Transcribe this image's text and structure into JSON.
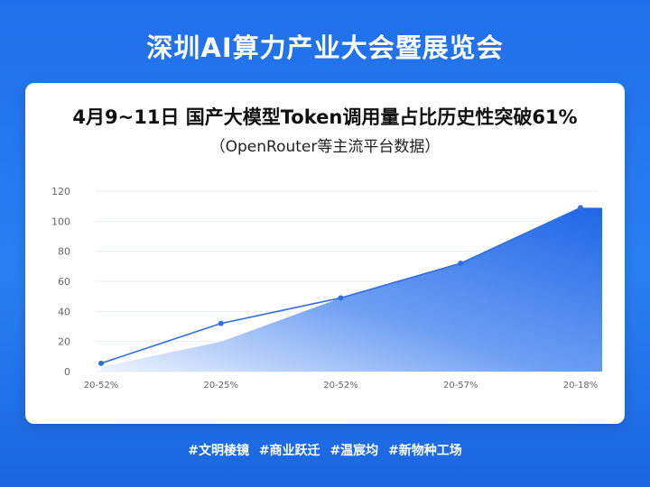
{
  "banner": {
    "title": "深圳AI算力产业大会暨展览会"
  },
  "card": {
    "title": "4月9~11日 国产大模型Token调用量占比历史性突破61%",
    "subtitle": "（OpenRouter等主流平台数据）"
  },
  "chart_data": {
    "type": "area",
    "title": "4月9~11日 国产大模型Token调用量占比历史性突破61%",
    "subtitle": "（OpenRouter等主流平台数据）",
    "categories": [
      "20-52%",
      "20-25%",
      "20-52%",
      "20-57%",
      "20-18%"
    ],
    "series": [
      {
        "values": [
          5.5,
          32,
          49,
          72,
          109
        ]
      }
    ],
    "ylim": [
      0,
      120
    ],
    "yticks": [
      0,
      20,
      40,
      60,
      80,
      100,
      120
    ],
    "grid": true,
    "colors": {
      "line": "#2f6fe4",
      "fill_top": "#1f66e6",
      "fill_bottom": "#eef4fe",
      "grid": "#e8edf5",
      "tick": "#666666"
    }
  },
  "footer": {
    "tags": [
      "#文明棱镜",
      "#商业跃迁",
      "#温宸均",
      "#新物种工场"
    ]
  }
}
